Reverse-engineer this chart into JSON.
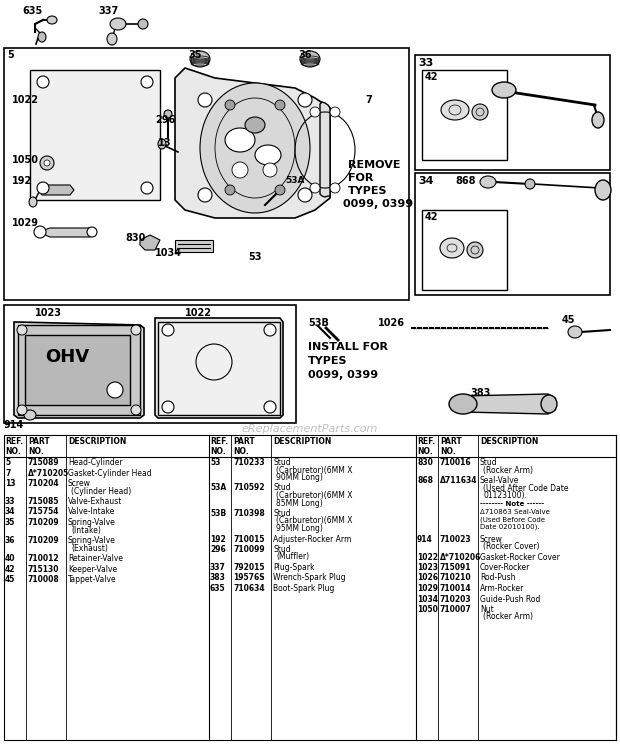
{
  "bg_color": "#ffffff",
  "watermark": "eReplacementParts.com",
  "col1_data": [
    [
      "5",
      "715089",
      "Head-Cylinder"
    ],
    [
      "7",
      "Δ*710205",
      "Gasket-Cylinder Head"
    ],
    [
      "13",
      "710204",
      "Screw\n(Cylinder Head)"
    ],
    [
      "33",
      "715085",
      "Valve-Exhaust"
    ],
    [
      "34",
      "715754",
      "Valve-Intake"
    ],
    [
      "35",
      "710209",
      "Spring-Valve\n(Intake)"
    ],
    [
      "36",
      "710209",
      "Spring-Valve\n(Exhaust)"
    ],
    [
      "40",
      "710012",
      "Retainer-Valve"
    ],
    [
      "42",
      "715130",
      "Keeper-Valve"
    ],
    [
      "45",
      "710008",
      "Tappet-Valve"
    ]
  ],
  "col2_data": [
    [
      "53",
      "710233",
      "Stud\n(Carburetor)(6MM X\n90MM Long)"
    ],
    [
      "53A",
      "710592",
      "Stud\n(Carburetor)(6MM X\n85MM Long)"
    ],
    [
      "53B",
      "710398",
      "Stud\n(Carburetor)(6MM X\n95MM Long)"
    ],
    [
      "192",
      "710015",
      "Adjuster-Rocker Arm"
    ],
    [
      "296",
      "710099",
      "Stud\n(Muffler)"
    ],
    [
      "337",
      "792015",
      "Plug-Spark"
    ],
    [
      "383",
      "19576S",
      "Wrench-Spark Plug"
    ],
    [
      "635",
      "710634",
      "Boot-Spark Plug"
    ]
  ],
  "col3_data": [
    [
      "830",
      "710016",
      "Stud\n(Rocker Arm)"
    ],
    [
      "868",
      "Δ711634",
      "Seal-Valve\n(Used After Code Date\n01123100)."
    ],
    [
      "",
      "",
      "-------- Note ------\nΔ710863 Seal-Valve\n(Used Before Code\nDate 02010100)."
    ],
    [
      "914",
      "710023",
      "Screw\n(Rocker Cover)"
    ],
    [
      "1022",
      "Δ*710206",
      "Gasket-Rocker Cover"
    ],
    [
      "1023",
      "715091",
      "Cover-Rocker"
    ],
    [
      "1026",
      "710210",
      "Rod-Push"
    ],
    [
      "1029",
      "710014",
      "Arm-Rocker"
    ],
    [
      "1034",
      "710203",
      "Guide-Push Rod"
    ],
    [
      "1050",
      "710007",
      "Nut\n(Rocker Arm)"
    ]
  ]
}
